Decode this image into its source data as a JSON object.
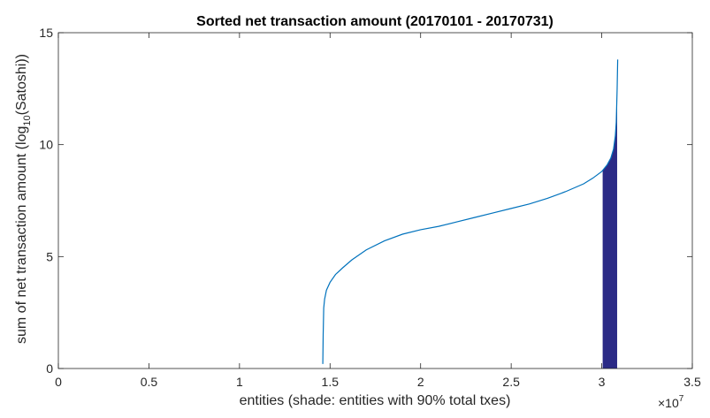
{
  "chart_data": {
    "type": "line",
    "title": "Sorted net transaction amount (20170101 - 20170731)",
    "xlabel": "entities (shade: entities with 90% total txes)",
    "ylabel": {
      "prefix": "sum of net transaction amount (log",
      "subscript": "10",
      "suffix": "(Satoshi))"
    },
    "xlim": [
      0,
      35000000
    ],
    "ylim": [
      0,
      15
    ],
    "x_exponent": {
      "base": "×10",
      "power": "7"
    },
    "x_ticks": [
      0,
      5000000,
      10000000,
      15000000,
      20000000,
      25000000,
      30000000,
      35000000
    ],
    "x_tick_labels": [
      "0",
      "0.5",
      "1",
      "1.5",
      "2",
      "2.5",
      "3",
      "3.5"
    ],
    "y_ticks": [
      0,
      5,
      10,
      15
    ],
    "y_tick_labels": [
      "0",
      "5",
      "10",
      "15"
    ],
    "grid": false,
    "series": [
      {
        "color": "#0072BD",
        "x": [
          14600000,
          14620000,
          14650000,
          14700000,
          14800000,
          15000000,
          15300000,
          15700000,
          16200000,
          17000000,
          18000000,
          19000000,
          20000000,
          21000000,
          22000000,
          23000000,
          24000000,
          25000000,
          26000000,
          27000000,
          28000000,
          29000000,
          29500000,
          30000000,
          30300000,
          30500000,
          30650000,
          30750000,
          30800000,
          30850000,
          30880000
        ],
        "y": [
          0.2,
          1.5,
          2.7,
          3.1,
          3.5,
          3.85,
          4.2,
          4.5,
          4.85,
          5.3,
          5.7,
          6.0,
          6.2,
          6.35,
          6.55,
          6.75,
          6.95,
          7.15,
          7.35,
          7.6,
          7.9,
          8.25,
          8.5,
          8.8,
          9.1,
          9.4,
          9.8,
          10.4,
          11.0,
          12.5,
          13.8
        ]
      }
    ],
    "shade": {
      "color": "#2B2A86",
      "x_start": 30050000,
      "x_end": 30850000
    },
    "axis_box": true
  }
}
